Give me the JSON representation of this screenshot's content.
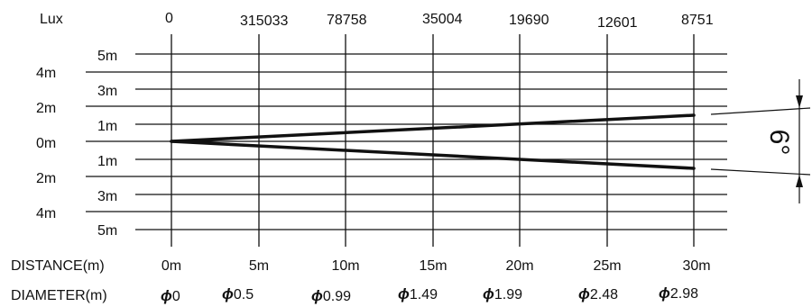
{
  "lux_label": "Lux",
  "lux_values": [
    "0",
    "315033",
    "78758",
    "35004",
    "19690",
    "12601",
    "8751"
  ],
  "right_scale": [
    "5m",
    "3m",
    "1m",
    "1m",
    "3m",
    "5m"
  ],
  "left_scale": [
    "4m",
    "2m",
    "0m",
    "2m",
    "4m"
  ],
  "distance_label": "DISTANCE(m)",
  "distance_values": [
    "0m",
    "5m",
    "10m",
    "15m",
    "20m",
    "25m",
    "30m"
  ],
  "diameter_label": "DIAMETER(m)",
  "diameter_symbol": "ϕ",
  "diameter_values": [
    "0",
    "0.5",
    "0.99",
    "1.49",
    "1.99",
    "2.48",
    "2.98"
  ],
  "beam_angle": "6°",
  "colors": {
    "line": "#111111",
    "background": "#ffffff"
  }
}
